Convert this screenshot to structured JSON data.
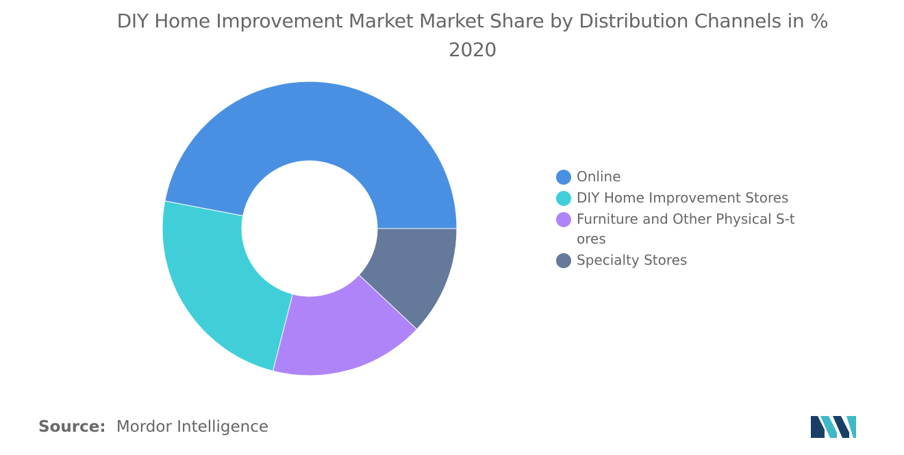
{
  "title": {
    "line1": "DIY Home Improvement Market Market Share by Distribution Channels in %",
    "line2": "2020"
  },
  "chart_data": {
    "type": "pie",
    "donut": true,
    "title": "DIY Home Improvement Market Market Share by Distribution Channels in % 2020",
    "categories": [
      "Online",
      "DIY Home Improvement Stores",
      "Furniture and Other Physical S-tores",
      "Specialty Stores"
    ],
    "values": [
      47,
      24,
      17,
      12
    ],
    "colors": [
      "#4a90e2",
      "#40cfd9",
      "#b084f9",
      "#65799b"
    ],
    "legend_position": "right"
  },
  "legend": {
    "items": [
      {
        "label": "Online",
        "color": "#4a90e2"
      },
      {
        "label": "DIY Home Improvement Stores",
        "color": "#40cfd9"
      },
      {
        "label": "Furniture and Other Physical S-tores",
        "color": "#b084f9"
      },
      {
        "label": "Specialty Stores",
        "color": "#65799b"
      }
    ]
  },
  "source": {
    "label": "Source:",
    "value": "Mordor Intelligence"
  },
  "logo": {
    "name": "mordor-intelligence-logo",
    "colors": [
      "#1a3f66",
      "#3fb8c8"
    ]
  }
}
